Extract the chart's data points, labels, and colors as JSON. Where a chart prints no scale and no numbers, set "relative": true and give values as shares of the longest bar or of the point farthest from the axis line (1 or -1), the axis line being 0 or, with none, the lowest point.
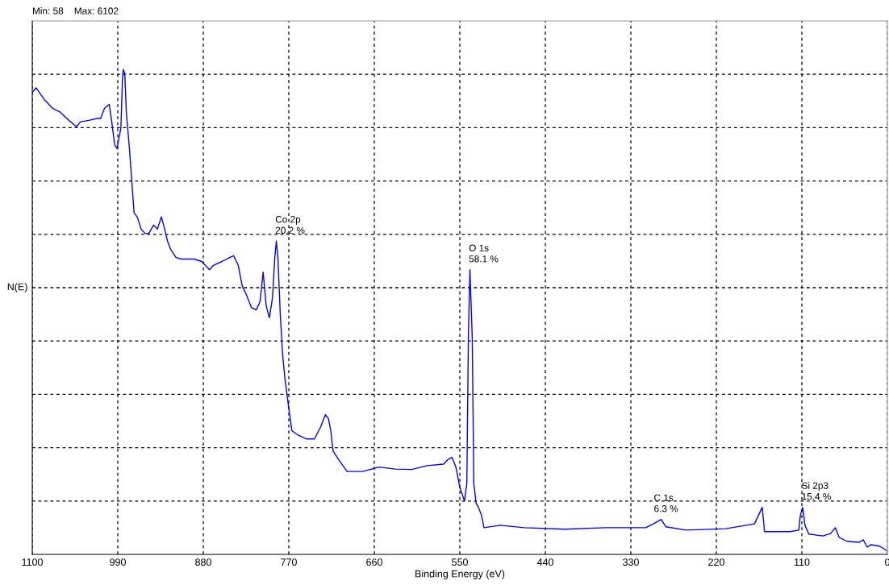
{
  "chart_data": {
    "type": "line",
    "relative": true,
    "xlabel": "Binding Energy (eV)",
    "ylabel": "N(E)",
    "xlim": [
      1100,
      0
    ],
    "xticks": [
      1100,
      990,
      880,
      770,
      660,
      550,
      440,
      330,
      220,
      110,
      0
    ],
    "x": [
      1100,
      1095,
      1084,
      1074,
      1064,
      1053,
      1043,
      1038,
      1027,
      1017,
      1012,
      1007,
      1001,
      998,
      994,
      991,
      988,
      986,
      984,
      983,
      981,
      979,
      975,
      972,
      969,
      965,
      960,
      955,
      950,
      944,
      939,
      934,
      931,
      926,
      922,
      915,
      908,
      892,
      882,
      872,
      867,
      856,
      846,
      841,
      835,
      830,
      825,
      818,
      812,
      807,
      803,
      799,
      795,
      791,
      788,
      786,
      784,
      781,
      778,
      775,
      771,
      766,
      758,
      747,
      737,
      729,
      723,
      719,
      716,
      713,
      706,
      695,
      675,
      654,
      633,
      612,
      592,
      571,
      565,
      560,
      555,
      550,
      544,
      541,
      539,
      537,
      534,
      532,
      529,
      526,
      522,
      519,
      498,
      467,
      415,
      363,
      311,
      301,
      291,
      285,
      259,
      208,
      171,
      166,
      161,
      158,
      145,
      125,
      114,
      112,
      109,
      106,
      101,
      83,
      73,
      67,
      62,
      52,
      36,
      31,
      26,
      21,
      10,
      0
    ],
    "series": [
      {
        "color": "#0000ff",
        "values": [
          0.953,
          0.962,
          0.937,
          0.92,
          0.912,
          0.895,
          0.882,
          0.892,
          0.895,
          0.899,
          0.899,
          0.92,
          0.928,
          0.895,
          0.845,
          0.837,
          0.862,
          0.879,
          0.978,
          1.0,
          0.992,
          0.912,
          0.837,
          0.77,
          0.704,
          0.696,
          0.671,
          0.662,
          0.662,
          0.679,
          0.671,
          0.696,
          0.679,
          0.646,
          0.629,
          0.612,
          0.609,
          0.609,
          0.604,
          0.587,
          0.596,
          0.604,
          0.612,
          0.616,
          0.596,
          0.554,
          0.537,
          0.509,
          0.504,
          0.521,
          0.582,
          0.512,
          0.488,
          0.529,
          0.612,
          0.646,
          0.612,
          0.496,
          0.413,
          0.363,
          0.313,
          0.255,
          0.246,
          0.238,
          0.238,
          0.263,
          0.288,
          0.28,
          0.255,
          0.213,
          0.196,
          0.171,
          0.171,
          0.18,
          0.176,
          0.175,
          0.183,
          0.186,
          0.196,
          0.2,
          0.18,
          0.138,
          0.11,
          0.146,
          0.446,
          0.587,
          0.446,
          0.146,
          0.105,
          0.097,
          0.08,
          0.055,
          0.06,
          0.055,
          0.052,
          0.055,
          0.055,
          0.063,
          0.072,
          0.057,
          0.05,
          0.053,
          0.063,
          0.08,
          0.097,
          0.047,
          0.047,
          0.047,
          0.05,
          0.08,
          0.097,
          0.06,
          0.042,
          0.038,
          0.043,
          0.055,
          0.035,
          0.027,
          0.025,
          0.03,
          0.015,
          0.02,
          0.017,
          0.007
        ]
      }
    ],
    "annotations": [
      "Min: 58    Max: 6102",
      {
        "text": "Co 2p\n20.2 %",
        "x": 786,
        "y": 0.646
      },
      {
        "text": "O 1s\n58.1 %",
        "x": 537,
        "y": 0.587
      },
      {
        "text": "C 1s\n6.3 %",
        "x": 299,
        "y": 0.072
      },
      {
        "text": "Si 2p3\n15.4 %",
        "x": 109,
        "y": 0.097
      }
    ],
    "grid": true,
    "line_style": "solid",
    "marker": "none",
    "tick_labels": "x",
    "legend": false
  }
}
